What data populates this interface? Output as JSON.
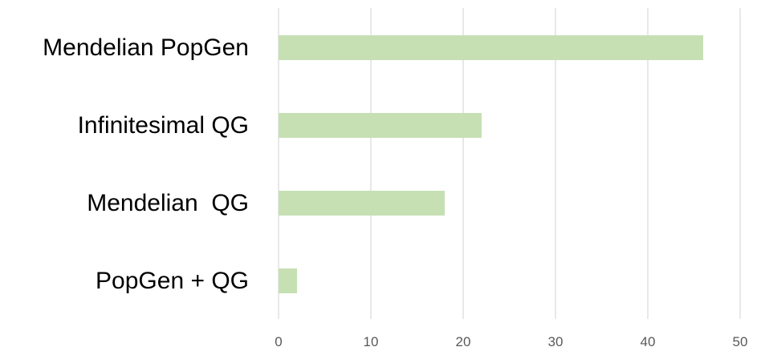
{
  "chart_data": {
    "type": "bar",
    "orientation": "horizontal",
    "categories": [
      "Mendelian PopGen",
      "Infinitesimal QG",
      "Mendelian  QG",
      "PopGen + QG"
    ],
    "values": [
      46,
      22,
      18,
      2
    ],
    "xlim": [
      0,
      50
    ],
    "ticks": [
      0,
      10,
      20,
      30,
      40,
      50
    ],
    "grid": true,
    "legend": "none",
    "title": "",
    "xlabel": "",
    "ylabel": ""
  },
  "colors": {
    "bar": "#c6e0b4",
    "grid": "#d9d9d9",
    "tick_text": "#595959",
    "category_text": "#000000"
  }
}
